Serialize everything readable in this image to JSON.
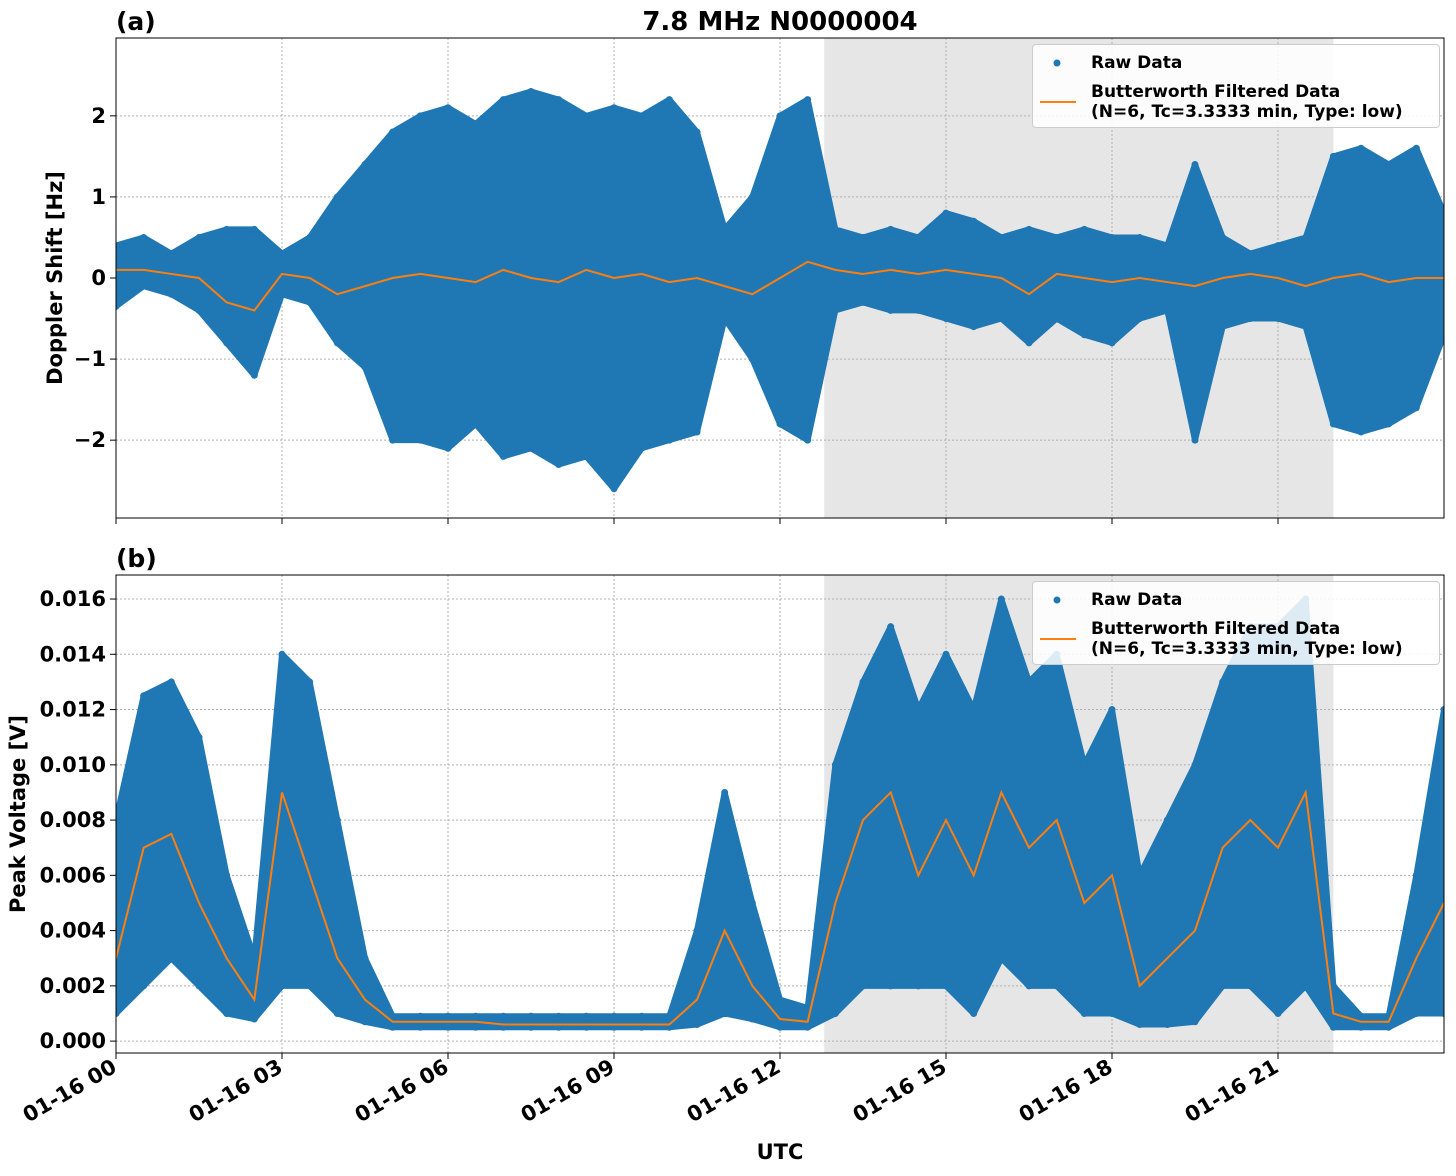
{
  "chart_data": [
    {
      "type": "scatter",
      "panel_label": "(a)",
      "title": "7.8 MHz N0000004",
      "ylabel": "Doppler Shift [Hz]",
      "x": [
        0,
        0.5,
        1,
        1.5,
        2,
        2.5,
        3,
        3.5,
        4,
        4.5,
        5,
        5.5,
        6,
        6.5,
        7,
        7.5,
        8,
        8.5,
        9,
        9.5,
        10,
        10.5,
        11,
        11.5,
        12,
        12.5,
        13,
        13.5,
        14,
        14.5,
        15,
        15.5,
        16,
        16.5,
        17,
        17.5,
        18,
        18.5,
        19,
        19.5,
        20,
        20.5,
        21,
        21.5,
        22,
        22.5,
        23,
        23.5,
        24
      ],
      "series": [
        {
          "name": "Raw Data",
          "color": "#1f77b4",
          "values_high": [
            0.4,
            0.5,
            0.3,
            0.5,
            0.6,
            0.6,
            0.3,
            0.5,
            1.0,
            1.4,
            1.8,
            2.0,
            2.1,
            1.9,
            2.2,
            2.3,
            2.2,
            2.0,
            2.1,
            2.0,
            2.2,
            1.8,
            0.6,
            1.0,
            2.0,
            2.2,
            0.6,
            0.5,
            0.6,
            0.5,
            0.8,
            0.7,
            0.5,
            0.6,
            0.5,
            0.6,
            0.5,
            0.5,
            0.4,
            1.4,
            0.5,
            0.3,
            0.4,
            0.5,
            1.5,
            1.6,
            1.4,
            1.6,
            0.8
          ],
          "values_low": [
            -0.35,
            -0.1,
            -0.2,
            -0.4,
            -0.8,
            -1.2,
            -0.2,
            -0.3,
            -0.8,
            -1.1,
            -2.0,
            -2.0,
            -2.1,
            -1.8,
            -2.2,
            -2.1,
            -2.3,
            -2.2,
            -2.6,
            -2.1,
            -2.0,
            -1.9,
            -0.5,
            -1.0,
            -1.8,
            -2.0,
            -0.4,
            -0.3,
            -0.4,
            -0.4,
            -0.5,
            -0.6,
            -0.5,
            -0.8,
            -0.5,
            -0.7,
            -0.8,
            -0.5,
            -0.4,
            -2.0,
            -0.6,
            -0.5,
            -0.5,
            -0.6,
            -1.8,
            -1.9,
            -1.8,
            -1.6,
            -0.7
          ]
        },
        {
          "name": "Butterworth Filtered Data\n(N=6, Tc=3.3333 min, Type: low)",
          "color": "#ff7f0e",
          "values": [
            0.1,
            0.1,
            0.05,
            0.0,
            -0.3,
            -0.4,
            0.05,
            0.0,
            -0.2,
            -0.1,
            0.0,
            0.05,
            0.0,
            -0.05,
            0.1,
            0.0,
            -0.05,
            0.1,
            0.0,
            0.05,
            -0.05,
            0.0,
            -0.1,
            -0.2,
            0.0,
            0.2,
            0.1,
            0.05,
            0.1,
            0.05,
            0.1,
            0.05,
            0.0,
            -0.2,
            0.05,
            0.0,
            -0.05,
            0.0,
            -0.05,
            -0.1,
            0.0,
            0.05,
            0.0,
            -0.1,
            0.0,
            0.05,
            -0.05,
            0.0,
            0.0
          ]
        }
      ],
      "xlim": [
        0,
        24
      ],
      "xticks": [
        0,
        3,
        6,
        9,
        12,
        15,
        18,
        21
      ],
      "ylim": [
        -2.96,
        2.96
      ],
      "yticks": [
        {
          "value": -2,
          "label": "−2"
        },
        {
          "value": -1,
          "label": "−1"
        },
        0,
        1,
        2
      ],
      "grid": true,
      "shaded_span": [
        12.8,
        22.0
      ],
      "legend": "upper right"
    },
    {
      "type": "scatter",
      "panel_label": "(b)",
      "ylabel": "Peak Voltage [V]",
      "xlabel": "UTC",
      "x": [
        0,
        0.5,
        1,
        1.5,
        2,
        2.5,
        3,
        3.5,
        4,
        4.5,
        5,
        5.5,
        6,
        6.5,
        7,
        7.5,
        8,
        8.5,
        9,
        9.5,
        10,
        10.5,
        11,
        11.5,
        12,
        12.5,
        13,
        13.5,
        14,
        14.5,
        15,
        15.5,
        16,
        16.5,
        17,
        17.5,
        18,
        18.5,
        19,
        19.5,
        20,
        20.5,
        21,
        21.5,
        22,
        22.5,
        23,
        23.5,
        24
      ],
      "series": [
        {
          "name": "Raw Data",
          "color": "#1f77b4",
          "values_high": [
            0.008,
            0.0125,
            0.013,
            0.011,
            0.006,
            0.003,
            0.014,
            0.013,
            0.008,
            0.003,
            0.0009,
            0.0009,
            0.0009,
            0.0009,
            0.0009,
            0.0009,
            0.0009,
            0.0009,
            0.0009,
            0.0009,
            0.0009,
            0.004,
            0.009,
            0.005,
            0.0015,
            0.0012,
            0.01,
            0.013,
            0.015,
            0.012,
            0.014,
            0.012,
            0.016,
            0.013,
            0.014,
            0.01,
            0.012,
            0.006,
            0.008,
            0.01,
            0.013,
            0.015,
            0.015,
            0.016,
            0.002,
            0.0009,
            0.0009,
            0.006,
            0.012
          ],
          "values_low": [
            0.001,
            0.002,
            0.003,
            0.002,
            0.001,
            0.0008,
            0.002,
            0.002,
            0.001,
            0.0007,
            0.0005,
            0.0005,
            0.0005,
            0.0005,
            0.0005,
            0.0005,
            0.0005,
            0.0005,
            0.0005,
            0.0005,
            0.0005,
            0.0006,
            0.001,
            0.0008,
            0.0005,
            0.0005,
            0.001,
            0.002,
            0.002,
            0.002,
            0.002,
            0.001,
            0.003,
            0.002,
            0.002,
            0.001,
            0.001,
            0.0006,
            0.0006,
            0.0007,
            0.002,
            0.002,
            0.001,
            0.002,
            0.0005,
            0.0005,
            0.0005,
            0.001,
            0.001
          ]
        },
        {
          "name": "Butterworth Filtered Data\n(N=6, Tc=3.3333 min, Type: low)",
          "color": "#ff7f0e",
          "values": [
            0.003,
            0.007,
            0.0075,
            0.005,
            0.003,
            0.0015,
            0.009,
            0.006,
            0.003,
            0.0015,
            0.0007,
            0.0007,
            0.0007,
            0.0007,
            0.0006,
            0.0006,
            0.0006,
            0.0006,
            0.0006,
            0.0006,
            0.0006,
            0.0015,
            0.004,
            0.002,
            0.0008,
            0.0007,
            0.005,
            0.008,
            0.009,
            0.006,
            0.008,
            0.006,
            0.009,
            0.007,
            0.008,
            0.005,
            0.006,
            0.002,
            0.003,
            0.004,
            0.007,
            0.008,
            0.007,
            0.009,
            0.001,
            0.0007,
            0.0007,
            0.003,
            0.005
          ]
        }
      ],
      "xlim": [
        0,
        24
      ],
      "xticks": [
        {
          "value": 0,
          "label": "01-16 00"
        },
        {
          "value": 3,
          "label": "01-16 03"
        },
        {
          "value": 6,
          "label": "01-16 06"
        },
        {
          "value": 9,
          "label": "01-16 09"
        },
        {
          "value": 12,
          "label": "01-16 12"
        },
        {
          "value": 15,
          "label": "01-16 15"
        },
        {
          "value": 18,
          "label": "01-16 18"
        },
        {
          "value": 21,
          "label": "01-16 21"
        }
      ],
      "ylim": [
        -0.00043,
        0.01687
      ],
      "yticks": [
        {
          "value": 0,
          "label": "0.000"
        },
        {
          "value": 0.002,
          "label": "0.002"
        },
        {
          "value": 0.004,
          "label": "0.004"
        },
        {
          "value": 0.006,
          "label": "0.006"
        },
        {
          "value": 0.008,
          "label": "0.008"
        },
        {
          "value": 0.01,
          "label": "0.010"
        },
        {
          "value": 0.012,
          "label": "0.012"
        },
        {
          "value": 0.014,
          "label": "0.014"
        },
        {
          "value": 0.016,
          "label": "0.016"
        }
      ],
      "grid": true,
      "shaded_span": [
        12.8,
        22.0
      ],
      "legend": "upper right"
    }
  ]
}
